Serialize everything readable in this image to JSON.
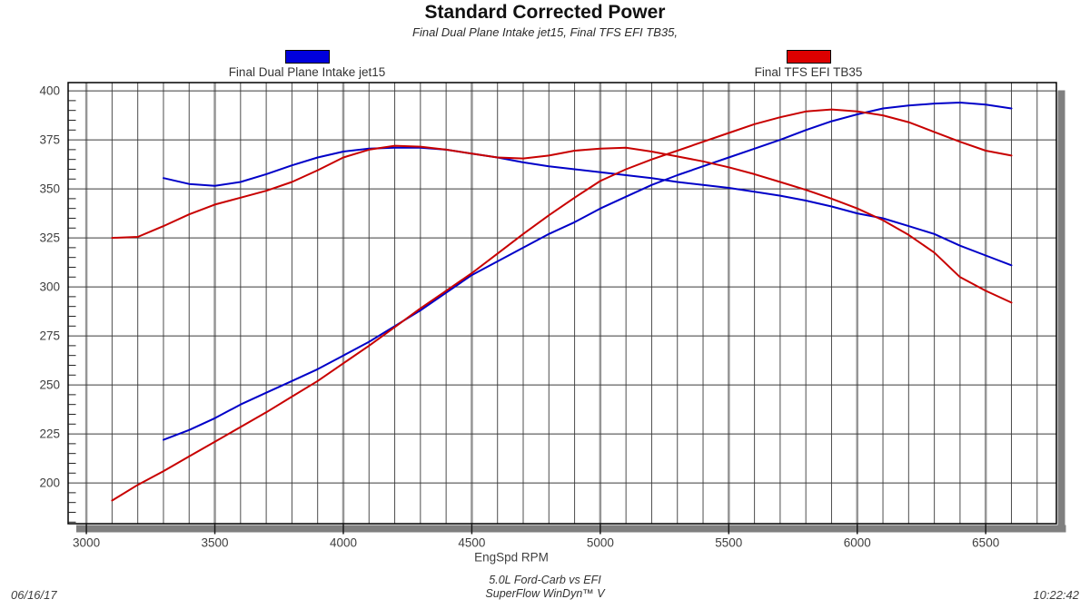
{
  "header": {
    "title": "Standard Corrected Power",
    "subtitle": "Final Dual Plane Intake jet15, Final TFS EFI TB35,"
  },
  "legend": [
    {
      "label": "Final Dual Plane Intake jet15",
      "color": "#0000dc"
    },
    {
      "label": "Final TFS EFI TB35",
      "color": "#dc0000"
    }
  ],
  "footer": {
    "date": "06/16/17",
    "center_line1": "5.0L Ford-Carb vs EFI",
    "center_line2": "SuperFlow WinDyn™ V",
    "time": "10:22:42"
  },
  "chart_data": {
    "type": "line",
    "title": "Standard Corrected Power",
    "xlabel": "EngSpd RPM",
    "ylabel": "",
    "xlim": [
      2929,
      6775
    ],
    "ylim": [
      179.2,
      404.2
    ],
    "x_ticks": [
      3000,
      3500,
      4000,
      4500,
      5000,
      5500,
      6000,
      6500
    ],
    "y_ticks": [
      200,
      225,
      250,
      275,
      300,
      325,
      350,
      375,
      400
    ],
    "x_minor_step": 100,
    "y_minor_step": 5,
    "grid": "both",
    "legend_position": "top",
    "series": [
      {
        "name": "Final Dual Plane Intake jet15 (torque)",
        "color": "#0000c8",
        "x": [
          3300,
          3400,
          3500,
          3600,
          3700,
          3800,
          3900,
          4000,
          4100,
          4200,
          4300,
          4400,
          4500,
          4600,
          4700,
          4800,
          4900,
          5000,
          5100,
          5200,
          5300,
          5400,
          5500,
          5600,
          5700,
          5800,
          5900,
          6000,
          6100,
          6200,
          6300,
          6400,
          6500,
          6600
        ],
        "y": [
          355.5,
          352.5,
          351.5,
          353.5,
          357.5,
          362,
          366,
          369,
          370.5,
          371,
          371,
          370,
          368,
          366,
          363.5,
          361.5,
          360,
          358.5,
          357,
          355.5,
          353.5,
          352,
          350.5,
          348.5,
          346.5,
          344,
          341,
          337.5,
          335,
          331,
          327,
          321,
          316,
          311
        ]
      },
      {
        "name": "Final Dual Plane Intake jet15 (power)",
        "color": "#0000c8",
        "x": [
          3300,
          3400,
          3500,
          3600,
          3700,
          3800,
          3900,
          4000,
          4100,
          4200,
          4300,
          4400,
          4500,
          4600,
          4700,
          4800,
          4900,
          5000,
          5100,
          5200,
          5300,
          5400,
          5500,
          5600,
          5700,
          5800,
          5900,
          6000,
          6100,
          6200,
          6300,
          6400,
          6500,
          6600
        ],
        "y": [
          222,
          227,
          233,
          240,
          246,
          252,
          258,
          265,
          272,
          280,
          288,
          297,
          306,
          313,
          320,
          327,
          333,
          340,
          346,
          352,
          357,
          361.5,
          366,
          370.5,
          375,
          380,
          384.5,
          388,
          391,
          392.5,
          393.5,
          394,
          393,
          391
        ]
      },
      {
        "name": "Final TFS EFI TB35 (torque)",
        "color": "#c80000",
        "x": [
          3100,
          3200,
          3300,
          3400,
          3500,
          3600,
          3700,
          3800,
          3900,
          4000,
          4100,
          4200,
          4300,
          4400,
          4500,
          4600,
          4700,
          4800,
          4900,
          5000,
          5100,
          5200,
          5300,
          5400,
          5500,
          5600,
          5700,
          5800,
          5900,
          6000,
          6100,
          6200,
          6300,
          6400,
          6500,
          6600
        ],
        "y": [
          325,
          325.5,
          331,
          337,
          342,
          345.5,
          349,
          353.5,
          359.5,
          366,
          370,
          372,
          371.5,
          370,
          368,
          366,
          365.5,
          367,
          369.5,
          370.5,
          371,
          369,
          366.5,
          364,
          361,
          357.5,
          353.5,
          349.5,
          345,
          340,
          334,
          326.5,
          317.5,
          305,
          298,
          292
        ]
      },
      {
        "name": "Final TFS EFI TB35 (power)",
        "color": "#c80000",
        "x": [
          3100,
          3200,
          3300,
          3400,
          3500,
          3600,
          3700,
          3800,
          3900,
          4000,
          4100,
          4200,
          4300,
          4400,
          4500,
          4600,
          4700,
          4800,
          4900,
          5000,
          5100,
          5200,
          5300,
          5400,
          5500,
          5600,
          5700,
          5800,
          5900,
          6000,
          6100,
          6200,
          6300,
          6400,
          6500,
          6600
        ],
        "y": [
          191,
          199,
          206,
          213.5,
          221,
          228.5,
          236,
          244,
          252,
          261,
          270,
          279.5,
          289,
          298,
          307,
          317,
          327,
          336.5,
          345.5,
          354,
          360,
          365,
          369.5,
          374,
          378.5,
          383,
          386.5,
          389.5,
          390.5,
          389.5,
          387.5,
          384,
          379,
          374,
          369.5,
          367
        ]
      }
    ]
  }
}
